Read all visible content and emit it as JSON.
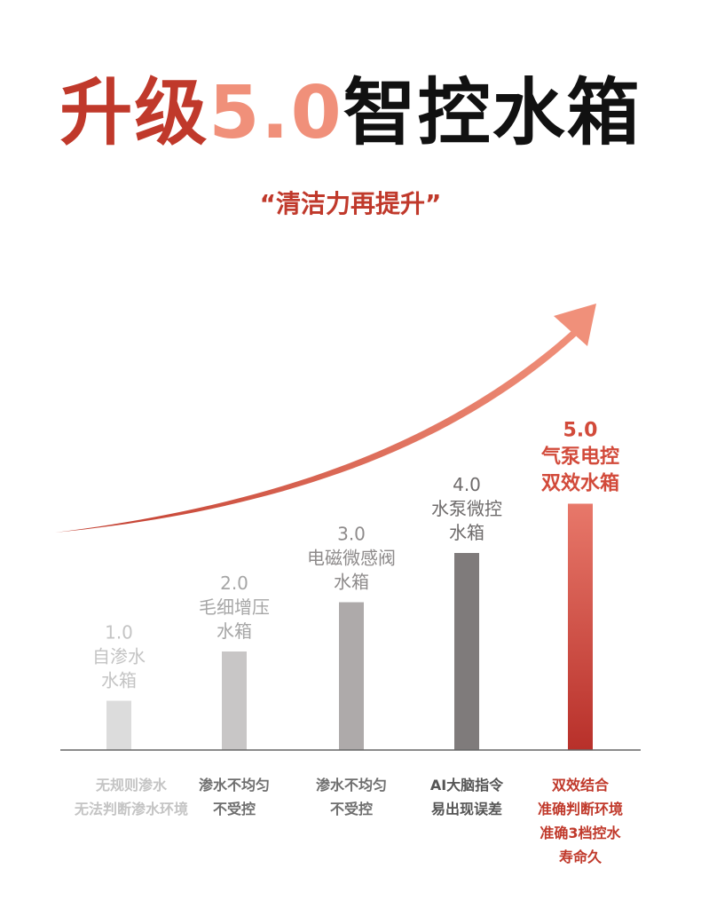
{
  "title": {
    "part1": "升级",
    "part2": "5.0",
    "part3": "智控水箱"
  },
  "subtitle": "“清洁力再提升”",
  "colors": {
    "accent": "#c0392b",
    "accent_light": "#f0907a"
  },
  "chart_data": {
    "type": "bar",
    "categories": [
      "1.0",
      "2.0",
      "3.0",
      "4.0",
      "5.0"
    ],
    "values": [
      1,
      2,
      3,
      4,
      5
    ],
    "ylim": [
      0,
      5
    ],
    "top_labels": [
      [
        "1.0",
        "自渗水",
        "水箱"
      ],
      [
        "2.0",
        "毛细增压",
        "水箱"
      ],
      [
        "3.0",
        "电磁微感阀",
        "水箱"
      ],
      [
        "4.0",
        "水泵微控",
        "水箱"
      ],
      [
        "5.0",
        "气泵电控",
        "双效水箱"
      ]
    ],
    "bottom_labels": [
      [
        "无规则渗水",
        "无法判断渗水环境"
      ],
      [
        "渗水不均匀",
        "不受控"
      ],
      [
        "渗水不均匀",
        "不受控"
      ],
      [
        "AI大脑指令",
        "易出现误差"
      ],
      [
        "双效结合",
        "准确判断环境",
        "准确3档控水",
        "寿命久"
      ]
    ],
    "bar_colors": [
      "#dcdcdc",
      "#c8c6c6",
      "#aeaaaa",
      "#7f7b7b",
      "#c0392b"
    ],
    "top_label_colors": [
      "#c4c4c4",
      "#a6a6a6",
      "#8e8b8b",
      "#6e6b6b",
      "#d24a3a"
    ],
    "bottom_label_colors": [
      "#c4c4c4",
      "#6e6e6e",
      "#6e6e6e",
      "#555555",
      "#c0392b"
    ],
    "grid": false
  }
}
